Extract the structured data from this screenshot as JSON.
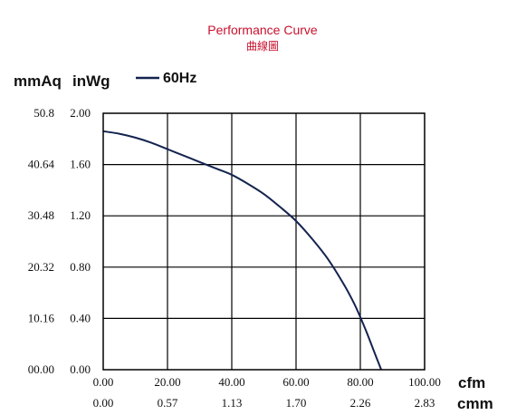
{
  "header": {
    "title": "Performance Curve",
    "subtitle": "曲線圖"
  },
  "units": {
    "y_primary": "mmAq",
    "y_secondary": "inWg",
    "x_primary": "cfm",
    "x_secondary": "cmm"
  },
  "legend": {
    "label": "60Hz",
    "placement": "top-left"
  },
  "colors": {
    "title": "#c8102e",
    "curve": "#14234f",
    "grid": "#000000",
    "text": "#111111"
  },
  "chart_data": {
    "type": "line",
    "title": "Performance Curve",
    "subtitle": "曲線圖",
    "xlabel": "cfm",
    "ylabel": "inWg",
    "xlim": [
      0,
      100
    ],
    "ylim": [
      0,
      2.0
    ],
    "grid": true,
    "x_ticks": [
      "0.00",
      "20.00",
      "40.00",
      "60.00",
      "80.00",
      "100.00"
    ],
    "x_secondary_ticks": [
      "0.00",
      "0.57",
      "1.13",
      "1.70",
      "2.26",
      "2.83"
    ],
    "y_ticks": [
      "0.00",
      "0.40",
      "0.80",
      "1.20",
      "1.60",
      "2.00"
    ],
    "y_secondary_ticks": [
      "00.00",
      "10.16",
      "20.32",
      "30.48",
      "40.64",
      "50.8"
    ],
    "series": [
      {
        "name": "60Hz",
        "x": [
          0,
          5,
          10,
          15,
          20,
          25,
          30,
          35,
          40,
          45,
          50,
          55,
          60,
          65,
          70,
          75,
          78,
          80,
          82,
          84,
          86.5
        ],
        "y": [
          1.86,
          1.84,
          1.81,
          1.77,
          1.72,
          1.67,
          1.62,
          1.57,
          1.52,
          1.45,
          1.37,
          1.27,
          1.16,
          1.02,
          0.86,
          0.66,
          0.52,
          0.41,
          0.29,
          0.16,
          0.0
        ]
      }
    ]
  }
}
